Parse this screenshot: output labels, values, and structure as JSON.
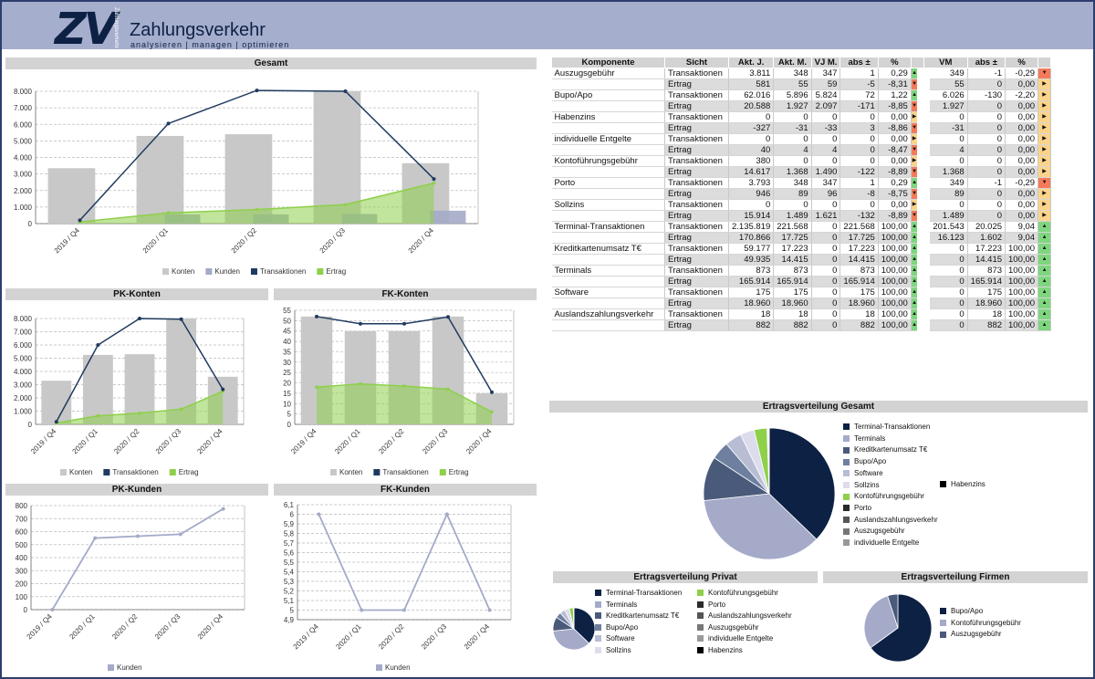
{
  "header": {
    "logo": "ZV",
    "logo_small": "Zahlungsverkehr",
    "title": "Zahlungsverkehr",
    "subtitle": "analysieren | managen | optimieren"
  },
  "colors": {
    "konten": "#c8c8c8",
    "kunden": "#a4aac8",
    "transaktionen": "#1f3a5f",
    "ertrag": "#8ed04a",
    "header": "#a6aecd"
  },
  "panels": {
    "gesamt": "Gesamt",
    "pk_konten": "PK-Konten",
    "fk_konten": "FK-Konten",
    "pk_kunden": "PK-Kunden",
    "fk_kunden": "FK-Kunden",
    "ertrag_gesamt": "Ertragsverteilung Gesamt",
    "ertrag_privat": "Ertragsverteilung Privat",
    "ertrag_firmen": "Ertragsverteilung Firmen"
  },
  "legend_labels": {
    "konten": "Konten",
    "kunden": "Kunden",
    "transaktionen": "Transaktionen",
    "ertrag": "Ertrag"
  },
  "chart_data": [
    {
      "id": "gesamt",
      "type": "bar",
      "categories": [
        "2019 / Q4",
        "2020 / Q1",
        "2020 / Q2",
        "2020 / Q3",
        "2020 / Q4"
      ],
      "ylim": [
        0,
        8000
      ],
      "yticks": [
        "0",
        "1.000",
        "2.000",
        "3.000",
        "4.000",
        "5.000",
        "6.000",
        "7.000",
        "8.000"
      ],
      "series": [
        {
          "name": "Konten",
          "kind": "bar",
          "values": [
            3350,
            5300,
            5400,
            8000,
            3650
          ]
        },
        {
          "name": "Kunden",
          "kind": "bar",
          "values": [
            0,
            550,
            560,
            580,
            780
          ]
        },
        {
          "name": "Transaktionen",
          "kind": "line",
          "values": [
            200,
            6050,
            8050,
            8000,
            2700
          ]
        },
        {
          "name": "Ertrag",
          "kind": "area",
          "values": [
            100,
            650,
            850,
            1150,
            2450
          ]
        }
      ]
    },
    {
      "id": "pk_konten",
      "type": "bar",
      "categories": [
        "2019 / Q4",
        "2020 / Q1",
        "2020 / Q2",
        "2020 / Q3",
        "2020 / Q4"
      ],
      "ylim": [
        0,
        8000
      ],
      "yticks": [
        "0",
        "1.000",
        "2.000",
        "3.000",
        "4.000",
        "5.000",
        "6.000",
        "7.000",
        "8.000"
      ],
      "series": [
        {
          "name": "Konten",
          "kind": "bar",
          "values": [
            3300,
            5250,
            5300,
            8000,
            3600
          ]
        },
        {
          "name": "Transaktionen",
          "kind": "line",
          "values": [
            200,
            6000,
            8000,
            7950,
            2650
          ]
        },
        {
          "name": "Ertrag",
          "kind": "area",
          "values": [
            100,
            650,
            850,
            1150,
            2500
          ]
        }
      ]
    },
    {
      "id": "fk_konten",
      "type": "bar",
      "categories": [
        "2019 / Q4",
        "2020 / Q1",
        "2020 / Q2",
        "2020 / Q3",
        "2020 / Q4"
      ],
      "ylim": [
        0,
        55
      ],
      "yticks": [
        "0",
        "5",
        "10",
        "15",
        "20",
        "25",
        "30",
        "35",
        "40",
        "45",
        "50",
        "55"
      ],
      "series": [
        {
          "name": "Konten",
          "kind": "bar",
          "values": [
            52,
            45,
            45,
            52,
            15
          ]
        },
        {
          "name": "Transaktionen",
          "kind": "line",
          "values": [
            52,
            48.5,
            48.5,
            51.8,
            15.5
          ]
        },
        {
          "name": "Ertrag",
          "kind": "area",
          "values": [
            18,
            19.5,
            18.5,
            17,
            6
          ]
        }
      ]
    },
    {
      "id": "pk_kunden",
      "type": "line",
      "categories": [
        "2019 / Q4",
        "2020 / Q1",
        "2020 / Q2",
        "2020 / Q3",
        "2020 / Q4"
      ],
      "ylim": [
        0,
        800
      ],
      "yticks": [
        "0",
        "100",
        "200",
        "300",
        "400",
        "500",
        "600",
        "700",
        "800"
      ],
      "series": [
        {
          "name": "Kunden",
          "kind": "line",
          "values": [
            0,
            550,
            565,
            580,
            775
          ]
        }
      ]
    },
    {
      "id": "fk_kunden",
      "type": "line",
      "categories": [
        "2019 / Q4",
        "2020 / Q1",
        "2020 / Q2",
        "2020 / Q3",
        "2020 / Q4"
      ],
      "ylim": [
        4.9,
        6.1
      ],
      "yticks": [
        "4,9",
        "5",
        "5,1",
        "5,2",
        "5,3",
        "5,4",
        "5,5",
        "5,6",
        "5,7",
        "5,8",
        "5,9",
        "6",
        "6,1"
      ],
      "series": [
        {
          "name": "Kunden",
          "kind": "line",
          "values": [
            6,
            5,
            5,
            6,
            5
          ]
        }
      ]
    },
    {
      "id": "ertrag_gesamt",
      "type": "pie",
      "labels": [
        "Terminal-Transaktionen",
        "Terminals",
        "Kreditkartenumsatz T€",
        "Bupo/Apo",
        "Software",
        "Sollzins",
        "Kontoführungsgebühr",
        "Porto",
        "Auslandszahlungsverkehr",
        "Auszugsgebühr",
        "individuelle Entgelte",
        "Habenzins"
      ],
      "values": [
        170866,
        165914,
        49935,
        20588,
        18960,
        15914,
        14617,
        946,
        882,
        581,
        40,
        0
      ],
      "colors": [
        "#0d2145",
        "#a4aac8",
        "#4a5a7a",
        "#6e7fa0",
        "#b8bdd4",
        "#dcdcec",
        "#8ed04a",
        "#2a2a2a",
        "#555555",
        "#777777",
        "#999999",
        "#000000"
      ]
    },
    {
      "id": "ertrag_privat",
      "type": "pie",
      "labels": [
        "Terminal-Transaktionen",
        "Terminals",
        "Kreditkartenumsatz T€",
        "Bupo/Apo",
        "Software",
        "Sollzins",
        "Kontoführungsgebühr",
        "Porto",
        "Auslandszahlungsverkehr",
        "Auszugsgebühr",
        "individuelle Entgelte",
        "Habenzins"
      ],
      "values": [
        170866,
        165914,
        49935,
        20588,
        18960,
        15914,
        14617,
        946,
        882,
        581,
        40,
        0
      ],
      "colors": [
        "#0d2145",
        "#a4aac8",
        "#4a5a7a",
        "#6e7fa0",
        "#b8bdd4",
        "#dcdcec",
        "#8ed04a",
        "#2a2a2a",
        "#555555",
        "#777777",
        "#999999",
        "#000000"
      ]
    },
    {
      "id": "ertrag_firmen",
      "type": "pie",
      "labels": [
        "Bupo/Apo",
        "Kontoführungsgebühr",
        "Auszugsgebühr"
      ],
      "values": [
        65,
        30,
        5
      ],
      "colors": [
        "#0d2145",
        "#a4aac8",
        "#4a5a7a"
      ]
    }
  ],
  "table": {
    "headers": [
      "Komponente",
      "Sicht",
      "Akt. J.",
      "Akt. M.",
      "VJ M.",
      "abs ±",
      "%",
      "",
      "VM",
      "abs ±",
      "%",
      ""
    ],
    "rows": [
      [
        "Auszugsgebühr",
        "Transaktionen",
        "3.811",
        "348",
        "347",
        "1",
        "0,29",
        "up",
        "349",
        "-1",
        "-0,29",
        "dn"
      ],
      [
        "",
        "Ertrag",
        "581",
        "55",
        "59",
        "-5",
        "-8,31",
        "dn",
        "55",
        "0",
        "0,00",
        "rt"
      ],
      [
        "Bupo/Apo",
        "Transaktionen",
        "62.016",
        "5.896",
        "5.824",
        "72",
        "1,22",
        "up",
        "6.026",
        "-130",
        "-2,20",
        "rt"
      ],
      [
        "",
        "Ertrag",
        "20.588",
        "1.927",
        "2.097",
        "-171",
        "-8,85",
        "dn",
        "1.927",
        "0",
        "0,00",
        "rt"
      ],
      [
        "Habenzins",
        "Transaktionen",
        "0",
        "0",
        "0",
        "0",
        "0,00",
        "rt",
        "0",
        "0",
        "0,00",
        "rt"
      ],
      [
        "",
        "Ertrag",
        "-327",
        "-31",
        "-33",
        "3",
        "-8,86",
        "dn",
        "-31",
        "0",
        "0,00",
        "rt"
      ],
      [
        "individuelle Entgelte",
        "Transaktionen",
        "0",
        "0",
        "0",
        "0",
        "0,00",
        "rt",
        "0",
        "0",
        "0,00",
        "rt"
      ],
      [
        "",
        "Ertrag",
        "40",
        "4",
        "4",
        "0",
        "-8,47",
        "dn",
        "4",
        "0",
        "0,00",
        "rt"
      ],
      [
        "Kontoführungsgebühr",
        "Transaktionen",
        "380",
        "0",
        "0",
        "0",
        "0,00",
        "rt",
        "0",
        "0",
        "0,00",
        "rt"
      ],
      [
        "",
        "Ertrag",
        "14.617",
        "1.368",
        "1.490",
        "-122",
        "-8,89",
        "dn",
        "1.368",
        "0",
        "0,00",
        "rt"
      ],
      [
        "Porto",
        "Transaktionen",
        "3.793",
        "348",
        "347",
        "1",
        "0,29",
        "up",
        "349",
        "-1",
        "-0,29",
        "dn"
      ],
      [
        "",
        "Ertrag",
        "946",
        "89",
        "96",
        "-8",
        "-8,75",
        "dn",
        "89",
        "0",
        "0,00",
        "rt"
      ],
      [
        "Sollzins",
        "Transaktionen",
        "0",
        "0",
        "0",
        "0",
        "0,00",
        "rt",
        "0",
        "0",
        "0,00",
        "rt"
      ],
      [
        "",
        "Ertrag",
        "15.914",
        "1.489",
        "1.621",
        "-132",
        "-8,89",
        "dn",
        "1.489",
        "0",
        "0,00",
        "rt"
      ],
      [
        "Terminal-Transaktionen",
        "Transaktionen",
        "2.135.819",
        "221.568",
        "0",
        "221.568",
        "100,00",
        "up",
        "201.543",
        "20.025",
        "9,04",
        "up"
      ],
      [
        "",
        "Ertrag",
        "170.866",
        "17.725",
        "0",
        "17.725",
        "100,00",
        "up",
        "16.123",
        "1.602",
        "9,04",
        "up"
      ],
      [
        "Kreditkartenumsatz T€",
        "Transaktionen",
        "59.177",
        "17.223",
        "0",
        "17.223",
        "100,00",
        "up",
        "0",
        "17.223",
        "100,00",
        "up"
      ],
      [
        "",
        "Ertrag",
        "49.935",
        "14.415",
        "0",
        "14.415",
        "100,00",
        "up",
        "0",
        "14.415",
        "100,00",
        "up"
      ],
      [
        "Terminals",
        "Transaktionen",
        "873",
        "873",
        "0",
        "873",
        "100,00",
        "up",
        "0",
        "873",
        "100,00",
        "up"
      ],
      [
        "",
        "Ertrag",
        "165.914",
        "165.914",
        "0",
        "165.914",
        "100,00",
        "up",
        "0",
        "165.914",
        "100,00",
        "up"
      ],
      [
        "Software",
        "Transaktionen",
        "175",
        "175",
        "0",
        "175",
        "100,00",
        "up",
        "0",
        "175",
        "100,00",
        "up"
      ],
      [
        "",
        "Ertrag",
        "18.960",
        "18.960",
        "0",
        "18.960",
        "100,00",
        "up",
        "0",
        "18.960",
        "100,00",
        "up"
      ],
      [
        "Auslandszahlungsverkehr",
        "Transaktionen",
        "18",
        "18",
        "0",
        "18",
        "100,00",
        "up",
        "0",
        "18",
        "100,00",
        "up"
      ],
      [
        "",
        "Ertrag",
        "882",
        "882",
        "0",
        "882",
        "100,00",
        "up",
        "0",
        "882",
        "100,00",
        "up"
      ]
    ]
  }
}
